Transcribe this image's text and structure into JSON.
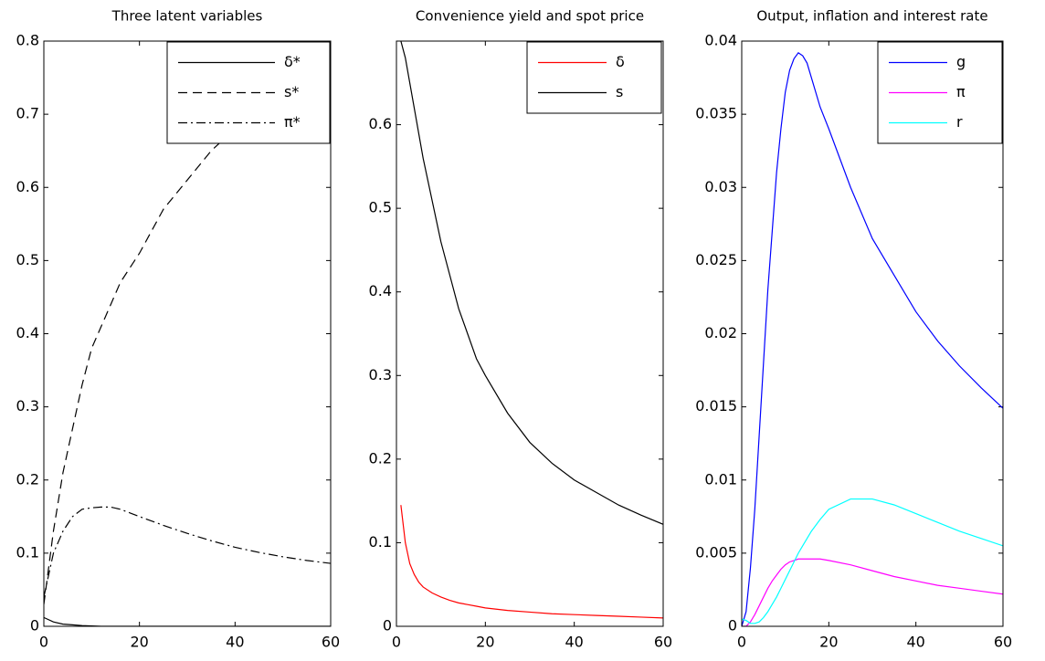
{
  "chart_data": [
    {
      "type": "line",
      "title": "Three latent variables",
      "x": [
        0,
        2,
        4,
        6,
        8,
        10,
        12,
        14,
        16,
        18,
        20,
        25,
        30,
        35,
        40,
        45,
        50,
        55,
        60
      ],
      "series": [
        {
          "name": "δ*",
          "color": "#000000",
          "linestyle": "-",
          "values": [
            0.012,
            0.006,
            0.003,
            0.002,
            0.001,
            0.0005,
            0,
            0,
            0,
            0,
            0,
            0,
            0,
            0,
            0,
            0,
            0,
            0,
            0
          ]
        },
        {
          "name": "s*",
          "color": "#000000",
          "linestyle": "--",
          "values": [
            0.03,
            0.13,
            0.21,
            0.27,
            0.33,
            0.38,
            0.41,
            0.44,
            0.47,
            0.49,
            0.51,
            0.57,
            0.61,
            0.65,
            0.68,
            0.71,
            0.73,
            0.75,
            0.76
          ]
        },
        {
          "name": "π*",
          "color": "#000000",
          "linestyle": "-.",
          "values": [
            0.04,
            0.1,
            0.13,
            0.15,
            0.16,
            0.162,
            0.163,
            0.163,
            0.16,
            0.155,
            0.15,
            0.138,
            0.127,
            0.117,
            0.108,
            0.101,
            0.095,
            0.09,
            0.086
          ]
        }
      ],
      "xlim": [
        0,
        60
      ],
      "xticks": [
        0,
        20,
        40,
        60
      ],
      "ylim": [
        0,
        0.8
      ],
      "yticks": [
        0,
        0.1,
        0.2,
        0.3,
        0.4,
        0.5,
        0.6,
        0.7,
        0.8
      ],
      "legend": "upper right"
    },
    {
      "type": "line",
      "title": "Convenience yield and spot price",
      "x": [
        1,
        2,
        3,
        4,
        5,
        6,
        8,
        10,
        12,
        14,
        16,
        18,
        20,
        25,
        30,
        35,
        40,
        45,
        50,
        55,
        60
      ],
      "series": [
        {
          "name": "δ",
          "color": "#ff0000",
          "linestyle": "-",
          "values": [
            0.145,
            0.1,
            0.075,
            0.062,
            0.053,
            0.047,
            0.04,
            0.035,
            0.031,
            0.028,
            0.026,
            0.024,
            0.022,
            0.019,
            0.017,
            0.015,
            0.014,
            0.013,
            0.012,
            0.011,
            0.01
          ]
        },
        {
          "name": "s",
          "color": "#000000",
          "linestyle": "-",
          "values": [
            0.7,
            0.68,
            0.65,
            0.62,
            0.59,
            0.56,
            0.51,
            0.46,
            0.42,
            0.38,
            0.35,
            0.32,
            0.3,
            0.255,
            0.22,
            0.195,
            0.175,
            0.16,
            0.145,
            0.133,
            0.122
          ]
        }
      ],
      "xlim": [
        0,
        60
      ],
      "xticks": [
        0,
        20,
        40,
        60
      ],
      "ylim": [
        0,
        0.7
      ],
      "yticks": [
        0,
        0.1,
        0.2,
        0.3,
        0.4,
        0.5,
        0.6
      ],
      "legend": "upper right"
    },
    {
      "type": "line",
      "title": "Output, inflation and interest rate",
      "x": [
        0,
        1,
        2,
        3,
        4,
        5,
        6,
        7,
        8,
        9,
        10,
        11,
        12,
        13,
        14,
        15,
        16,
        18,
        20,
        25,
        30,
        35,
        40,
        45,
        50,
        55,
        60
      ],
      "series": [
        {
          "name": "g",
          "color": "#0000ff",
          "linestyle": "-",
          "values": [
            0,
            0.001,
            0.004,
            0.008,
            0.013,
            0.018,
            0.023,
            0.027,
            0.031,
            0.034,
            0.0365,
            0.038,
            0.0388,
            0.0392,
            0.039,
            0.0385,
            0.0375,
            0.0355,
            0.034,
            0.03,
            0.0265,
            0.024,
            0.0215,
            0.0195,
            0.0178,
            0.0163,
            0.0149
          ]
        },
        {
          "name": "π",
          "color": "#ff00ff",
          "linestyle": "-",
          "values": [
            0,
            0,
            0.0003,
            0.0008,
            0.0014,
            0.002,
            0.0026,
            0.0031,
            0.0035,
            0.0039,
            0.0042,
            0.0044,
            0.0045,
            0.0046,
            0.0046,
            0.0046,
            0.0046,
            0.0046,
            0.0045,
            0.0042,
            0.0038,
            0.0034,
            0.0031,
            0.0028,
            0.0026,
            0.0024,
            0.0022
          ]
        },
        {
          "name": "r",
          "color": "#00ffff",
          "linestyle": "-",
          "values": [
            0.0005,
            0.0004,
            0.0002,
            0.0002,
            0.0003,
            0.0006,
            0.001,
            0.0015,
            0.002,
            0.0026,
            0.0032,
            0.0038,
            0.0044,
            0.005,
            0.0055,
            0.006,
            0.0065,
            0.0073,
            0.008,
            0.0087,
            0.0087,
            0.0083,
            0.0077,
            0.0071,
            0.0065,
            0.006,
            0.0055
          ]
        }
      ],
      "xlim": [
        0,
        60
      ],
      "xticks": [
        0,
        20,
        40,
        60
      ],
      "ylim": [
        0,
        0.04
      ],
      "yticks": [
        0,
        0.005,
        0.01,
        0.015,
        0.02,
        0.025,
        0.03,
        0.035,
        0.04
      ],
      "legend": "upper right"
    }
  ]
}
